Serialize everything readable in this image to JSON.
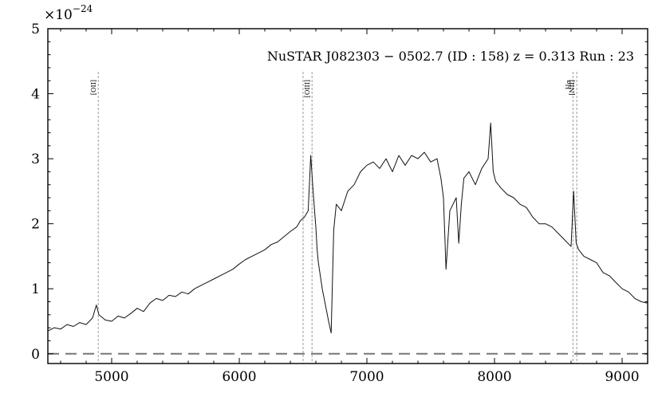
{
  "chart_data": {
    "type": "line",
    "title": "",
    "xlabel": "",
    "ylabel": "",
    "annotation": "NuSTAR J082303 − 0502.7 (ID : 158)   z = 0.313   Run : 23",
    "multiplier_base": "×10",
    "multiplier_exp": "−24",
    "xlim": [
      4500,
      9200
    ],
    "ylim": [
      -0.15,
      5.0
    ],
    "x_ticks": [
      5000,
      6000,
      7000,
      8000,
      9000
    ],
    "x_tick_labels": [
      "5000",
      "6000",
      "7000",
      "8000",
      "9000"
    ],
    "y_ticks": [
      0,
      1,
      2,
      3,
      4,
      5
    ],
    "y_tick_labels": [
      "0",
      "1",
      "2",
      "3",
      "4",
      "5"
    ],
    "grid": false,
    "zero_line": 0,
    "colors": {
      "spectrum": "#111111",
      "zero_line": "#777777",
      "emission_lines": "#9a9a9a",
      "axes": "#000000"
    },
    "emission_lines": [
      {
        "label": "[OII]",
        "x": 4895
      },
      {
        "label": "",
        "x": 6500
      },
      {
        "label": "[OIII]",
        "x": 6570
      },
      {
        "label": "Hα",
        "x": 8615
      },
      {
        "label": "[NII]",
        "x": 8645
      }
    ],
    "series": [
      {
        "x": [
          4500,
          4550,
          4600,
          4650,
          4700,
          4750,
          4800,
          4850,
          4880,
          4900,
          4950,
          5000,
          5050,
          5100,
          5150,
          5200,
          5250,
          5300,
          5350,
          5400,
          5450,
          5500,
          5550,
          5600,
          5650,
          5700,
          5750,
          5800,
          5850,
          5900,
          5950,
          6000,
          6050,
          6100,
          6150,
          6200,
          6250,
          6300,
          6350,
          6400,
          6450,
          6480,
          6510,
          6540,
          6560,
          6575,
          6590,
          6600,
          6610,
          6620,
          6650,
          6700,
          6720,
          6740,
          6760,
          6800,
          6850,
          6900,
          6950,
          7000,
          7050,
          7100,
          7150,
          7200,
          7250,
          7300,
          7350,
          7400,
          7450,
          7500,
          7550,
          7580,
          7600,
          7620,
          7650,
          7700,
          7720,
          7740,
          7760,
          7800,
          7850,
          7900,
          7950,
          7970,
          7990,
          8010,
          8050,
          8100,
          8150,
          8200,
          8250,
          8300,
          8350,
          8400,
          8450,
          8500,
          8550,
          8600,
          8620,
          8640,
          8660,
          8700,
          8750,
          8800,
          8850,
          8900,
          8950,
          9000,
          9050,
          9100,
          9150,
          9200
        ],
        "y": [
          0.35,
          0.4,
          0.38,
          0.45,
          0.42,
          0.48,
          0.45,
          0.55,
          0.75,
          0.6,
          0.52,
          0.5,
          0.58,
          0.55,
          0.62,
          0.7,
          0.65,
          0.78,
          0.85,
          0.82,
          0.9,
          0.88,
          0.95,
          0.92,
          1.0,
          1.05,
          1.1,
          1.15,
          1.2,
          1.25,
          1.3,
          1.38,
          1.45,
          1.5,
          1.55,
          1.6,
          1.68,
          1.72,
          1.8,
          1.88,
          1.95,
          2.05,
          2.1,
          2.2,
          3.05,
          2.6,
          2.2,
          1.95,
          1.6,
          1.4,
          1.0,
          0.5,
          0.32,
          1.9,
          2.3,
          2.2,
          2.5,
          2.6,
          2.8,
          2.9,
          2.95,
          2.85,
          3.0,
          2.8,
          3.05,
          2.9,
          3.05,
          3.0,
          3.1,
          2.95,
          3.0,
          2.7,
          2.4,
          1.3,
          2.2,
          2.4,
          1.7,
          2.3,
          2.7,
          2.8,
          2.6,
          2.85,
          3.0,
          3.55,
          2.8,
          2.65,
          2.55,
          2.45,
          2.4,
          2.3,
          2.25,
          2.1,
          2.0,
          2.0,
          1.95,
          1.85,
          1.75,
          1.65,
          2.5,
          1.7,
          1.6,
          1.5,
          1.45,
          1.4,
          1.25,
          1.2,
          1.1,
          1.0,
          0.95,
          0.85,
          0.8,
          0.78
        ]
      }
    ]
  }
}
